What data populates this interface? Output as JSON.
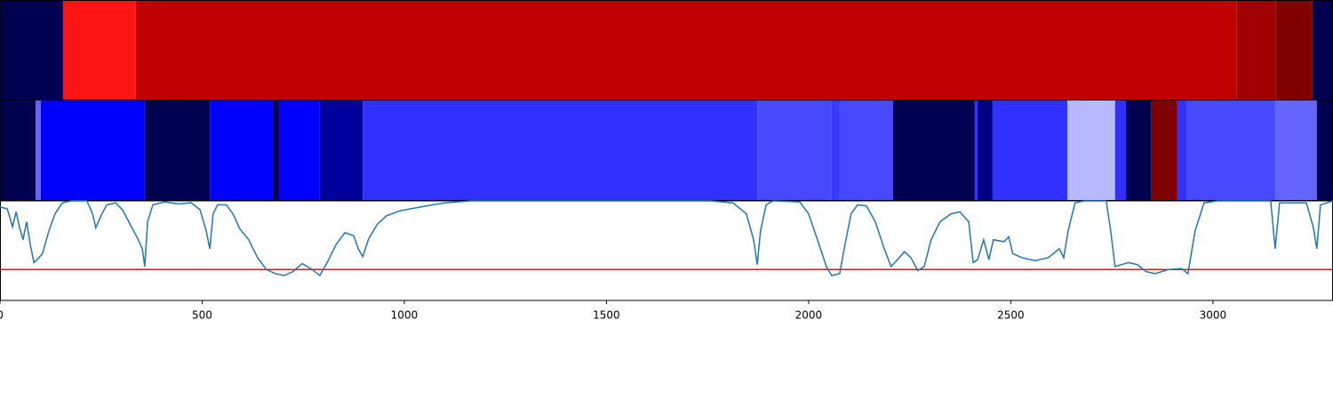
{
  "chart_data": [
    {
      "type": "segments",
      "segments": [
        {
          "start": 0,
          "end": 156,
          "color": "#000050"
        },
        {
          "start": 156,
          "end": 336,
          "color": "#ff1414"
        },
        {
          "start": 336,
          "end": 3059,
          "color": "#c00000"
        },
        {
          "start": 3059,
          "end": 3156,
          "color": "#a00000"
        },
        {
          "start": 3156,
          "end": 3246,
          "color": "#800000"
        },
        {
          "start": 3246,
          "end": 3297,
          "color": "#000050"
        }
      ]
    },
    {
      "type": "segments",
      "segments": [
        {
          "start": 0,
          "end": 88,
          "color": "#000050"
        },
        {
          "start": 88,
          "end": 101,
          "color": "#6464ff"
        },
        {
          "start": 101,
          "end": 358,
          "color": "#0000ff"
        },
        {
          "start": 358,
          "end": 519,
          "color": "#000050"
        },
        {
          "start": 519,
          "end": 675,
          "color": "#0000ff"
        },
        {
          "start": 675,
          "end": 690,
          "color": "#000050"
        },
        {
          "start": 690,
          "end": 791,
          "color": "#0000ff"
        },
        {
          "start": 791,
          "end": 897,
          "color": "#00009a"
        },
        {
          "start": 897,
          "end": 1873,
          "color": "#3030ff"
        },
        {
          "start": 1873,
          "end": 2057,
          "color": "#4848ff"
        },
        {
          "start": 2057,
          "end": 2077,
          "color": "#3838ff"
        },
        {
          "start": 2077,
          "end": 2209,
          "color": "#4848ff"
        },
        {
          "start": 2209,
          "end": 2411,
          "color": "#000050"
        },
        {
          "start": 2411,
          "end": 2418,
          "color": "#3030ff"
        },
        {
          "start": 2418,
          "end": 2455,
          "color": "#000080"
        },
        {
          "start": 2455,
          "end": 2640,
          "color": "#3030ff"
        },
        {
          "start": 2640,
          "end": 2758,
          "color": "#b8b8ff"
        },
        {
          "start": 2758,
          "end": 2785,
          "color": "#3030ff"
        },
        {
          "start": 2785,
          "end": 2848,
          "color": "#000050"
        },
        {
          "start": 2848,
          "end": 2912,
          "color": "#800000"
        },
        {
          "start": 2912,
          "end": 2936,
          "color": "#3030ff"
        },
        {
          "start": 2936,
          "end": 3154,
          "color": "#4848ff"
        },
        {
          "start": 3154,
          "end": 3257,
          "color": "#6464ff"
        },
        {
          "start": 3257,
          "end": 3297,
          "color": "#000050"
        }
      ]
    },
    {
      "type": "line",
      "color": "#1f77b4",
      "threshold": 0.31,
      "threshold_color": "#ff0000",
      "xlim": [
        0,
        3297
      ],
      "ylim": [
        0,
        1
      ],
      "xticks": [
        0,
        500,
        1000,
        1500,
        2000,
        2500,
        3000
      ],
      "x": [
        0,
        18,
        31,
        40,
        48,
        57,
        66,
        75,
        84,
        92,
        105,
        121,
        136,
        154,
        176,
        215,
        229,
        237,
        251,
        264,
        286,
        303,
        325,
        341,
        352,
        358,
        365,
        378,
        407,
        440,
        473,
        495,
        510,
        519,
        527,
        538,
        560,
        576,
        593,
        615,
        637,
        659,
        681,
        703,
        725,
        747,
        769,
        791,
        809,
        831,
        853,
        875,
        886,
        897,
        912,
        934,
        956,
        989,
        1055,
        1099,
        1165,
        1758,
        1813,
        1846,
        1864,
        1873,
        1881,
        1895,
        1912,
        1978,
        2000,
        2022,
        2044,
        2057,
        2077,
        2088,
        2105,
        2121,
        2143,
        2165,
        2187,
        2204,
        2220,
        2237,
        2253,
        2270,
        2286,
        2303,
        2325,
        2352,
        2374,
        2396,
        2407,
        2418,
        2433,
        2446,
        2457,
        2484,
        2495,
        2505,
        2527,
        2560,
        2593,
        2620,
        2631,
        2642,
        2659,
        2681,
        2736,
        2747,
        2758,
        2774,
        2791,
        2813,
        2835,
        2857,
        2890,
        2923,
        2938,
        2956,
        2978,
        3011,
        3143,
        3154,
        3165,
        3231,
        3248,
        3257,
        3266,
        3297
      ],
      "values": [
        0.94,
        0.92,
        0.74,
        0.89,
        0.74,
        0.61,
        0.79,
        0.56,
        0.38,
        0.41,
        0.47,
        0.7,
        0.87,
        0.98,
        1,
        1,
        0.87,
        0.73,
        0.86,
        0.96,
        0.98,
        0.91,
        0.74,
        0.62,
        0.52,
        0.34,
        0.79,
        0.96,
        0.99,
        0.97,
        0.98,
        0.91,
        0.7,
        0.52,
        0.87,
        0.96,
        0.96,
        0.87,
        0.72,
        0.61,
        0.43,
        0.31,
        0.27,
        0.25,
        0.29,
        0.37,
        0.32,
        0.25,
        0.38,
        0.56,
        0.68,
        0.65,
        0.52,
        0.44,
        0.62,
        0.77,
        0.85,
        0.9,
        0.95,
        0.98,
        1,
        1,
        0.98,
        0.87,
        0.61,
        0.36,
        0.7,
        0.96,
        1,
        0.99,
        0.87,
        0.61,
        0.34,
        0.25,
        0.27,
        0.52,
        0.87,
        0.96,
        0.95,
        0.79,
        0.52,
        0.34,
        0.41,
        0.49,
        0.43,
        0.3,
        0.34,
        0.61,
        0.79,
        0.87,
        0.89,
        0.79,
        0.38,
        0.41,
        0.61,
        0.41,
        0.61,
        0.59,
        0.64,
        0.47,
        0.43,
        0.4,
        0.43,
        0.52,
        0.43,
        0.7,
        0.98,
        1,
        1,
        0.7,
        0.34,
        0.36,
        0.38,
        0.36,
        0.29,
        0.27,
        0.31,
        0.32,
        0.27,
        0.7,
        0.98,
        1,
        1,
        0.52,
        0.98,
        0.98,
        0.74,
        0.52,
        0.96,
        1
      ]
    }
  ]
}
